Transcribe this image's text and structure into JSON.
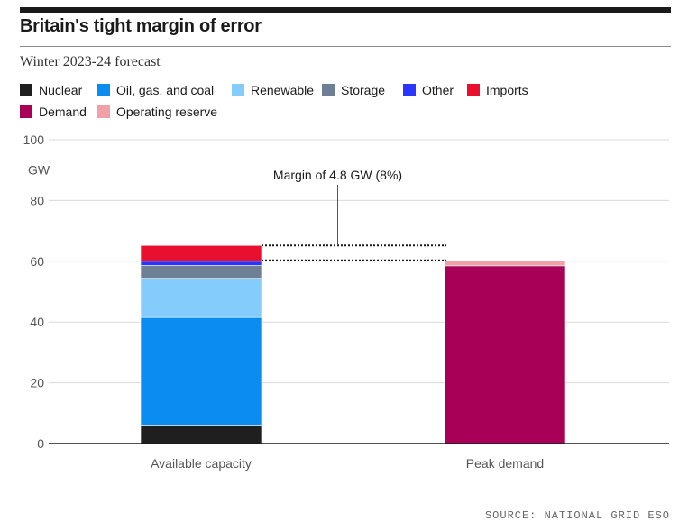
{
  "title": "Britain's tight margin of error",
  "subtitle": "Winter 2023-24 forecast",
  "source": "SOURCE: NATIONAL GRID ESO",
  "legend": [
    {
      "label": "Nuclear",
      "color": "#1f1f1f"
    },
    {
      "label": "Oil, gas, and coal",
      "color": "#0a8cf0"
    },
    {
      "label": "Renewable",
      "color": "#84ccfb"
    },
    {
      "label": "Storage",
      "color": "#6f7f95"
    },
    {
      "label": "Other",
      "color": "#2a35ff"
    },
    {
      "label": "Imports",
      "color": "#e8102e"
    },
    {
      "label": "Demand",
      "color": "#a80056"
    },
    {
      "label": "Operating reserve",
      "color": "#f1a0a8"
    }
  ],
  "chart_data": {
    "type": "bar",
    "stacked": true,
    "categories": [
      "Available capacity",
      "Peak demand"
    ],
    "series": [
      {
        "name": "Nuclear",
        "values": [
          6.1,
          0
        ],
        "color": "#1f1f1f"
      },
      {
        "name": "Oil, gas, and coal",
        "values": [
          35.4,
          0
        ],
        "color": "#0a8cf0"
      },
      {
        "name": "Renewable",
        "values": [
          12.9,
          0
        ],
        "color": "#84ccfb"
      },
      {
        "name": "Storage",
        "values": [
          4.2,
          0
        ],
        "color": "#6f7f95"
      },
      {
        "name": "Other",
        "values": [
          1.4,
          0
        ],
        "color": "#2a35ff"
      },
      {
        "name": "Imports",
        "values": [
          5.2,
          0
        ],
        "color": "#e8102e"
      },
      {
        "name": "Demand",
        "values": [
          0,
          58.5
        ],
        "color": "#a80056"
      },
      {
        "name": "Operating reserve",
        "values": [
          0,
          1.8
        ],
        "color": "#f1a0a8"
      }
    ],
    "ylim": [
      0,
      100
    ],
    "yticks": [
      0,
      20,
      40,
      60,
      80,
      100
    ],
    "ylabel": "GW",
    "grid": true,
    "legend_position": "top",
    "annotation": {
      "text": "Margin of 4.8 GW (8%)",
      "upper": 65.2,
      "lower": 60.3
    }
  }
}
